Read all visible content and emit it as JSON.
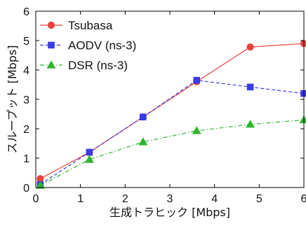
{
  "chart_data": {
    "type": "line",
    "xlabel": "生成トラヒック [Mbps]",
    "ylabel": "スループット [Mbps]",
    "xlim": [
      0,
      6
    ],
    "ylim": [
      0,
      6
    ],
    "xticks": [
      "0",
      "1",
      "2",
      "3",
      "4",
      "5",
      "6"
    ],
    "yticks": [
      "0",
      "1",
      "2",
      "3",
      "4",
      "5",
      "6"
    ],
    "grid": false,
    "legend_position": "top-left",
    "series": [
      {
        "name": "Tsubasa",
        "color": "#e8413c",
        "marker": "circle",
        "line_style": "solid",
        "x": [
          0.1,
          1.2,
          2.4,
          3.6,
          4.8,
          6.0
        ],
        "y": [
          0.3,
          1.2,
          2.4,
          3.6,
          4.78,
          4.9
        ]
      },
      {
        "name": "AODV (ns-3)",
        "color": "#3a3ae6",
        "marker": "square",
        "line_style": "dashed",
        "x": [
          0.1,
          1.2,
          2.4,
          3.6,
          4.8,
          6.0
        ],
        "y": [
          0.1,
          1.2,
          2.4,
          3.65,
          3.42,
          3.2
        ]
      },
      {
        "name": "DSR (ns-3)",
        "color": "#2fb52f",
        "marker": "triangle",
        "line_style": "dashdot",
        "x": [
          0.1,
          1.2,
          2.4,
          3.6,
          4.8,
          6.0
        ],
        "y": [
          0.07,
          0.95,
          1.55,
          1.93,
          2.15,
          2.3
        ]
      }
    ]
  }
}
